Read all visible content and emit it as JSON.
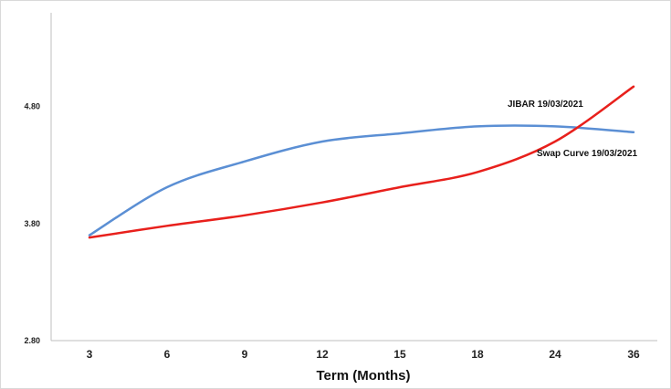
{
  "chart_data": {
    "type": "line",
    "categories": [
      "3",
      "6",
      "9",
      "12",
      "15",
      "18",
      "24",
      "36"
    ],
    "xlabel": "Term (Months)",
    "ylabel": "",
    "ylim": [
      2.8,
      5.6
    ],
    "y_ticks": [
      "2.80",
      "3.80",
      "4.80"
    ],
    "y_tick_values": [
      2.8,
      3.8,
      4.8
    ],
    "grid": false,
    "series": [
      {
        "name": "JIBAR  19/03/2021",
        "color": "#5b8fd4",
        "values": [
          3.7,
          4.11,
          4.33,
          4.5,
          4.57,
          4.63,
          4.63,
          4.58
        ]
      },
      {
        "name": "Swap Curve  19/03/2021",
        "color": "#e8201c",
        "values": [
          3.68,
          3.78,
          3.87,
          3.98,
          4.11,
          4.24,
          4.5,
          4.97
        ]
      }
    ]
  }
}
